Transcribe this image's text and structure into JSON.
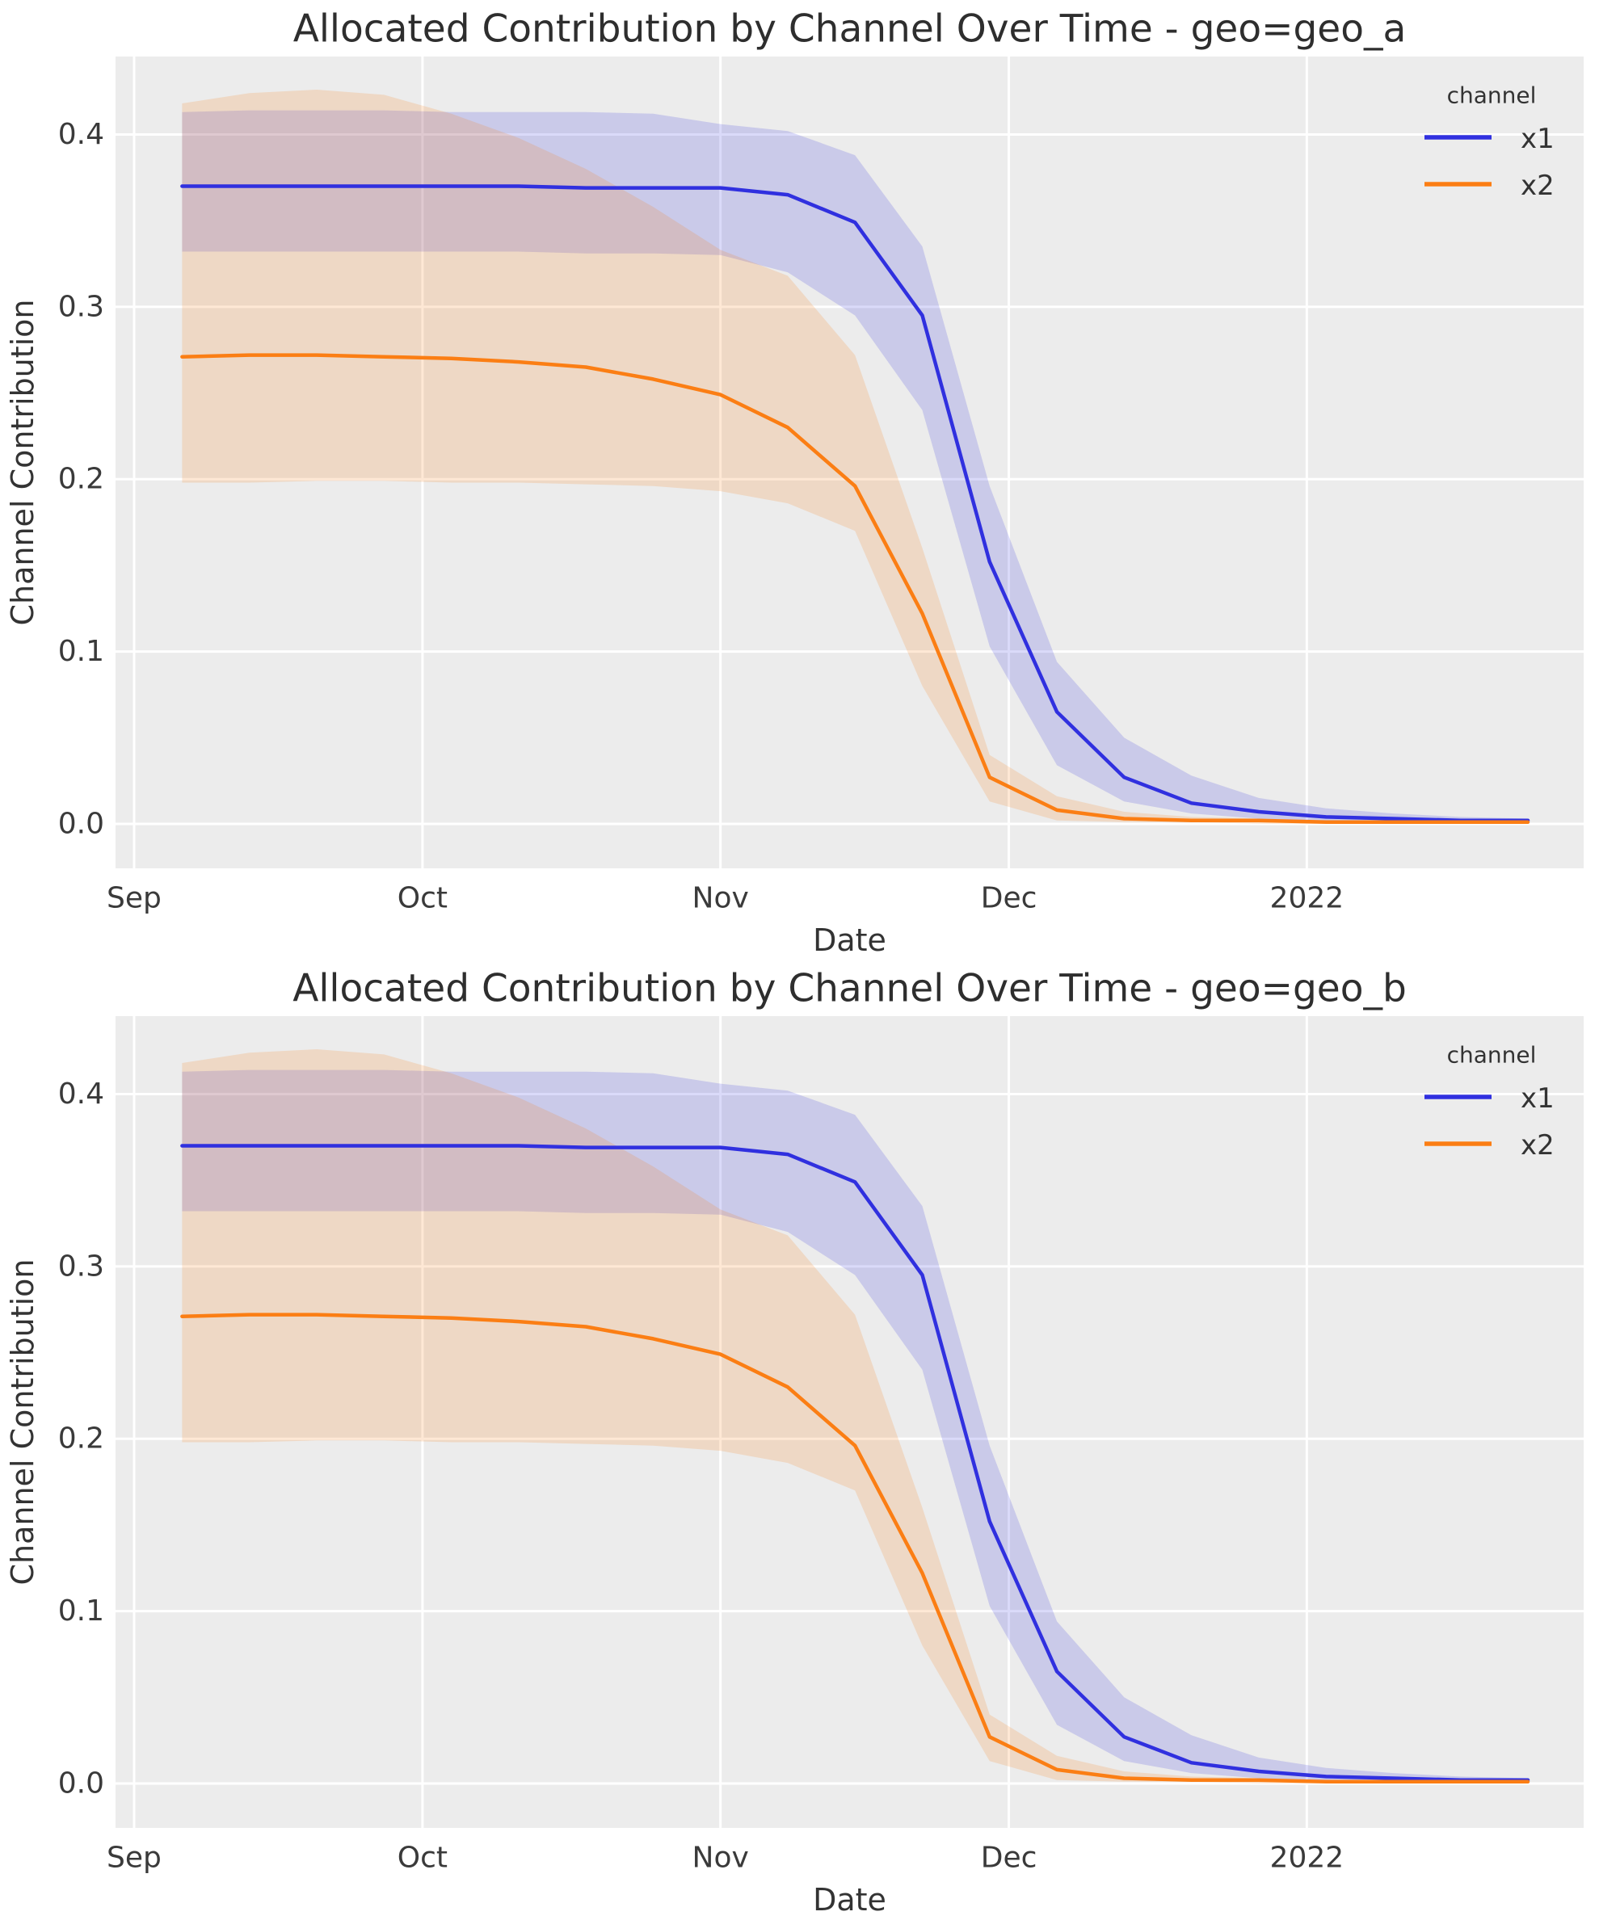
{
  "window": {
    "background": "#ffffff",
    "plot_background": "#ececec",
    "grid_color": "#ffffff",
    "tick_color": "#3a3a3a",
    "label_color": "#333333",
    "title_color": "#2e2e2e"
  },
  "chart_data": [
    {
      "type": "line",
      "title": "Allocated Contribution by Channel Over Time - geo=geo_a",
      "xlabel": "Date",
      "ylabel": "Channel Contribution",
      "legend_title": "channel",
      "legend_position": "upper-right",
      "grid": true,
      "x_unit": "days since Sep 1 2021, weekly points",
      "x_days": [
        5,
        12,
        19,
        26,
        33,
        40,
        47,
        54,
        61,
        68,
        75,
        82,
        89,
        96,
        103,
        110,
        117,
        124,
        131,
        138,
        145
      ],
      "xlim_days": [
        -1.93,
        150.8
      ],
      "ylim": [
        -0.0258,
        0.4452
      ],
      "xticks": [
        {
          "label": "Sep",
          "day": 0
        },
        {
          "label": "Oct",
          "day": 30
        },
        {
          "label": "Nov",
          "day": 61
        },
        {
          "label": "Dec",
          "day": 91
        },
        {
          "label": "2022",
          "day": 122
        }
      ],
      "yticks": [
        {
          "label": "0.0",
          "value": 0.0
        },
        {
          "label": "0.1",
          "value": 0.1
        },
        {
          "label": "0.2",
          "value": 0.2
        },
        {
          "label": "0.3",
          "value": 0.3
        },
        {
          "label": "0.4",
          "value": 0.4
        }
      ],
      "series": [
        {
          "name": "x1",
          "color": "#3030df",
          "band_opacity": 0.18,
          "values": [
            0.37,
            0.37,
            0.37,
            0.37,
            0.37,
            0.37,
            0.369,
            0.369,
            0.369,
            0.365,
            0.349,
            0.295,
            0.152,
            0.065,
            0.027,
            0.012,
            0.007,
            0.004,
            0.003,
            0.002,
            0.002
          ],
          "ci_lower": [
            0.332,
            0.332,
            0.332,
            0.332,
            0.332,
            0.332,
            0.331,
            0.331,
            0.33,
            0.32,
            0.295,
            0.24,
            0.103,
            0.034,
            0.013,
            0.006,
            0.003,
            0.002,
            0.001,
            0.001,
            0.001
          ],
          "ci_upper": [
            0.413,
            0.414,
            0.414,
            0.414,
            0.413,
            0.413,
            0.413,
            0.412,
            0.406,
            0.402,
            0.388,
            0.335,
            0.196,
            0.094,
            0.05,
            0.028,
            0.015,
            0.009,
            0.006,
            0.004,
            0.003
          ]
        },
        {
          "name": "x2",
          "color": "#fb7e14",
          "band_opacity": 0.18,
          "values": [
            0.271,
            0.272,
            0.272,
            0.271,
            0.27,
            0.268,
            0.265,
            0.258,
            0.249,
            0.23,
            0.196,
            0.122,
            0.027,
            0.008,
            0.003,
            0.002,
            0.002,
            0.001,
            0.001,
            0.001,
            0.001
          ],
          "ci_lower": [
            0.198,
            0.198,
            0.199,
            0.199,
            0.198,
            0.198,
            0.197,
            0.196,
            0.193,
            0.186,
            0.17,
            0.08,
            0.013,
            0.002,
            0.001,
            0.001,
            0.0,
            0.0,
            0.0,
            0.0,
            0.0
          ],
          "ci_upper": [
            0.418,
            0.424,
            0.426,
            0.423,
            0.412,
            0.398,
            0.38,
            0.358,
            0.333,
            0.318,
            0.272,
            0.16,
            0.04,
            0.016,
            0.007,
            0.004,
            0.003,
            0.002,
            0.002,
            0.001,
            0.001
          ]
        }
      ]
    },
    {
      "type": "line",
      "title": "Allocated Contribution by Channel Over Time - geo=geo_b",
      "xlabel": "Date",
      "ylabel": "Channel Contribution",
      "legend_title": "channel",
      "legend_position": "upper-right",
      "grid": true,
      "x_unit": "days since Sep 1 2021, weekly points",
      "x_days": [
        5,
        12,
        19,
        26,
        33,
        40,
        47,
        54,
        61,
        68,
        75,
        82,
        89,
        96,
        103,
        110,
        117,
        124,
        131,
        138,
        145
      ],
      "xlim_days": [
        -1.93,
        150.8
      ],
      "ylim": [
        -0.0258,
        0.4452
      ],
      "xticks": [
        {
          "label": "Sep",
          "day": 0
        },
        {
          "label": "Oct",
          "day": 30
        },
        {
          "label": "Nov",
          "day": 61
        },
        {
          "label": "Dec",
          "day": 91
        },
        {
          "label": "2022",
          "day": 122
        }
      ],
      "yticks": [
        {
          "label": "0.0",
          "value": 0.0
        },
        {
          "label": "0.1",
          "value": 0.1
        },
        {
          "label": "0.2",
          "value": 0.2
        },
        {
          "label": "0.3",
          "value": 0.3
        },
        {
          "label": "0.4",
          "value": 0.4
        }
      ],
      "series": [
        {
          "name": "x1",
          "color": "#3030df",
          "band_opacity": 0.18,
          "values": [
            0.37,
            0.37,
            0.37,
            0.37,
            0.37,
            0.37,
            0.369,
            0.369,
            0.369,
            0.365,
            0.349,
            0.295,
            0.152,
            0.065,
            0.027,
            0.012,
            0.007,
            0.004,
            0.003,
            0.002,
            0.002
          ],
          "ci_lower": [
            0.332,
            0.332,
            0.332,
            0.332,
            0.332,
            0.332,
            0.331,
            0.331,
            0.33,
            0.32,
            0.295,
            0.24,
            0.103,
            0.034,
            0.013,
            0.006,
            0.003,
            0.002,
            0.001,
            0.001,
            0.001
          ],
          "ci_upper": [
            0.413,
            0.414,
            0.414,
            0.414,
            0.413,
            0.413,
            0.413,
            0.412,
            0.406,
            0.402,
            0.388,
            0.335,
            0.196,
            0.094,
            0.05,
            0.028,
            0.015,
            0.009,
            0.006,
            0.004,
            0.003
          ]
        },
        {
          "name": "x2",
          "color": "#fb7e14",
          "band_opacity": 0.18,
          "values": [
            0.271,
            0.272,
            0.272,
            0.271,
            0.27,
            0.268,
            0.265,
            0.258,
            0.249,
            0.23,
            0.196,
            0.122,
            0.027,
            0.008,
            0.003,
            0.002,
            0.002,
            0.001,
            0.001,
            0.001,
            0.001
          ],
          "ci_lower": [
            0.198,
            0.198,
            0.199,
            0.199,
            0.198,
            0.198,
            0.197,
            0.196,
            0.193,
            0.186,
            0.17,
            0.08,
            0.013,
            0.002,
            0.001,
            0.001,
            0.0,
            0.0,
            0.0,
            0.0,
            0.0
          ],
          "ci_upper": [
            0.418,
            0.424,
            0.426,
            0.423,
            0.412,
            0.398,
            0.38,
            0.358,
            0.333,
            0.318,
            0.272,
            0.16,
            0.04,
            0.016,
            0.007,
            0.004,
            0.003,
            0.002,
            0.002,
            0.001,
            0.001
          ]
        }
      ]
    }
  ]
}
